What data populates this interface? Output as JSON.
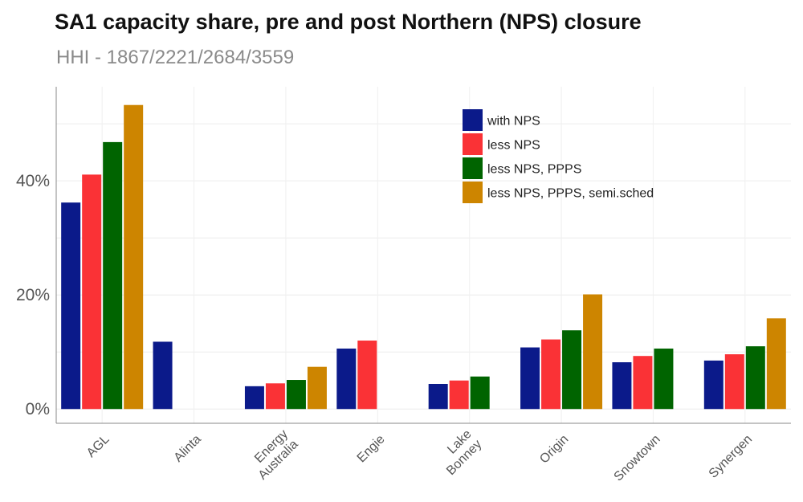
{
  "chart_data": {
    "type": "bar",
    "title": "SA1 capacity share, pre and post Northern (NPS) closure",
    "subtitle": "HHI - 1867/2221/2684/3559",
    "xlabel": "",
    "ylabel": "",
    "categories": [
      "AGL",
      "Alinta",
      "Energy\nAustralia",
      "Engie",
      "Lake\nBonney",
      "Origin",
      "Snowtown",
      "Synergen"
    ],
    "y_ticks": [
      0,
      20,
      40
    ],
    "y_tick_labels": [
      "0%",
      "20%",
      "40%"
    ],
    "ylim": [
      -2.5,
      56.5
    ],
    "grid": true,
    "legend_position": "top-right",
    "series": [
      {
        "name": "with NPS",
        "color": "#0b1a8a",
        "values": [
          36.2,
          11.8,
          4.0,
          10.6,
          4.4,
          10.8,
          8.2,
          8.5
        ]
      },
      {
        "name": "less NPS",
        "color": "#fa3236",
        "values": [
          41.1,
          null,
          4.5,
          12.0,
          5.0,
          12.2,
          9.3,
          9.6
        ]
      },
      {
        "name": "less NPS, PPPS",
        "color": "#006400",
        "values": [
          46.8,
          null,
          5.1,
          null,
          5.7,
          13.8,
          10.6,
          11.0
        ]
      },
      {
        "name": "less NPS, PPPS, semi.sched",
        "color": "#cd8500",
        "values": [
          53.3,
          null,
          7.4,
          null,
          null,
          20.1,
          null,
          15.9
        ]
      }
    ]
  }
}
